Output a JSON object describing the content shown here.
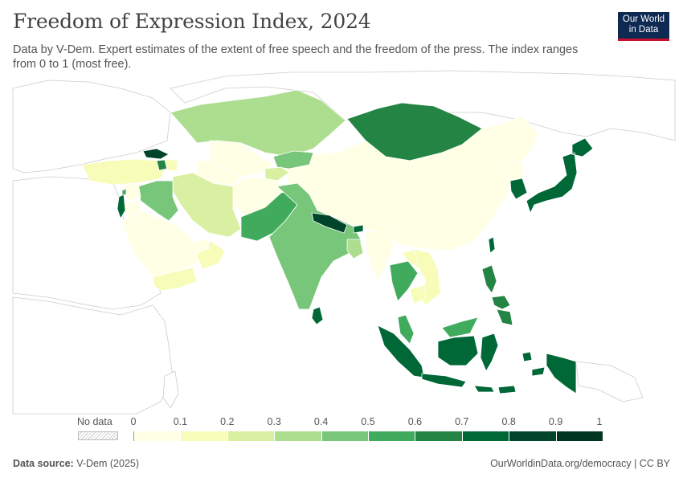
{
  "header": {
    "title": "Freedom of Expression Index, 2024",
    "subtitle": "Data by V-Dem. Expert estimates of the extent of free speech and the freedom of the press. The index ranges from 0 to 1 (most free)."
  },
  "logo": {
    "line1": "Our World",
    "line2": "in Data"
  },
  "legend": {
    "no_data_label": "No data",
    "ticks": [
      "0",
      "0.1",
      "0.2",
      "0.3",
      "0.4",
      "0.5",
      "0.6",
      "0.7",
      "0.8",
      "0.9",
      "1"
    ],
    "colors": [
      "#ffffe5",
      "#f7fcb9",
      "#d9f0a3",
      "#addd8e",
      "#78c679",
      "#41ab5d",
      "#238443",
      "#006837",
      "#004529",
      "#00361f"
    ]
  },
  "footer": {
    "source_label": "Data source:",
    "source_value": "V-Dem (2025)",
    "credit": "OurWorldinData.org/democracy | CC BY"
  }
}
